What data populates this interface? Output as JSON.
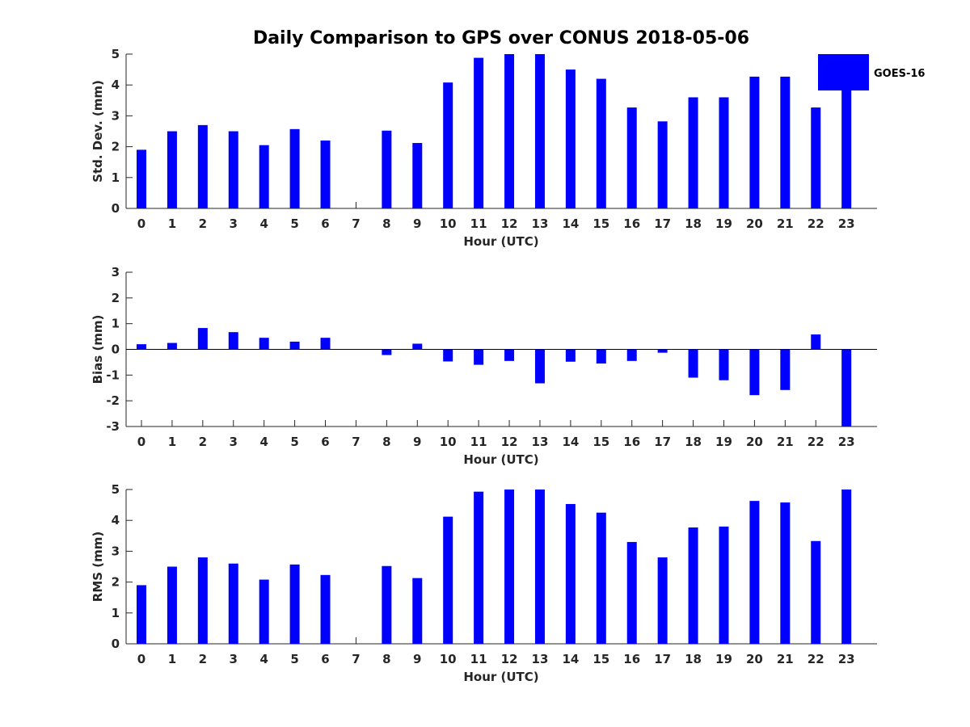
{
  "chart_data": {
    "type": "bar",
    "title": "Daily Comparison to GPS over CONUS 2018-05-06",
    "legend": {
      "label": "GOES-16",
      "color": "#0000ff",
      "position": "top-right"
    },
    "categories": [
      "0",
      "1",
      "2",
      "3",
      "4",
      "5",
      "6",
      "7",
      "8",
      "9",
      "10",
      "11",
      "12",
      "13",
      "14",
      "15",
      "16",
      "17",
      "18",
      "19",
      "20",
      "21",
      "22",
      "23"
    ],
    "panels": [
      {
        "name": "std-dev",
        "ylabel": "Std. Dev. (mm)",
        "xlabel": "Hour (UTC)",
        "ylim": [
          0,
          5
        ],
        "yticks": [
          "0",
          "1",
          "2",
          "3",
          "4",
          "5"
        ],
        "values": [
          1.9,
          2.5,
          2.7,
          2.5,
          2.05,
          2.57,
          2.2,
          null,
          2.52,
          2.12,
          4.08,
          4.88,
          5.0,
          5.0,
          4.5,
          4.2,
          3.27,
          2.82,
          3.6,
          3.6,
          4.27,
          4.27,
          3.27,
          4.05
        ]
      },
      {
        "name": "bias",
        "ylabel": "Bias (mm)",
        "xlabel": "Hour (UTC)",
        "ylim": [
          -3,
          3
        ],
        "yticks": [
          "-3",
          "-2",
          "-1",
          "0",
          "1",
          "2",
          "3"
        ],
        "values": [
          0.2,
          0.25,
          0.83,
          0.67,
          0.45,
          0.3,
          0.45,
          null,
          -0.22,
          0.22,
          -0.47,
          -0.6,
          -0.45,
          -1.32,
          -0.48,
          -0.55,
          -0.45,
          -0.13,
          -1.1,
          -1.2,
          -1.78,
          -1.58,
          0.58,
          -3.0
        ]
      },
      {
        "name": "rms",
        "ylabel": "RMS (mm)",
        "xlabel": "Hour (UTC)",
        "ylim": [
          0,
          5
        ],
        "yticks": [
          "0",
          "1",
          "2",
          "3",
          "4",
          "5"
        ],
        "values": [
          1.9,
          2.5,
          2.8,
          2.6,
          2.08,
          2.57,
          2.23,
          null,
          2.52,
          2.13,
          4.12,
          4.93,
          5.0,
          5.0,
          4.53,
          4.25,
          3.3,
          2.8,
          3.77,
          3.8,
          4.63,
          4.58,
          3.33,
          5.0
        ]
      }
    ]
  }
}
